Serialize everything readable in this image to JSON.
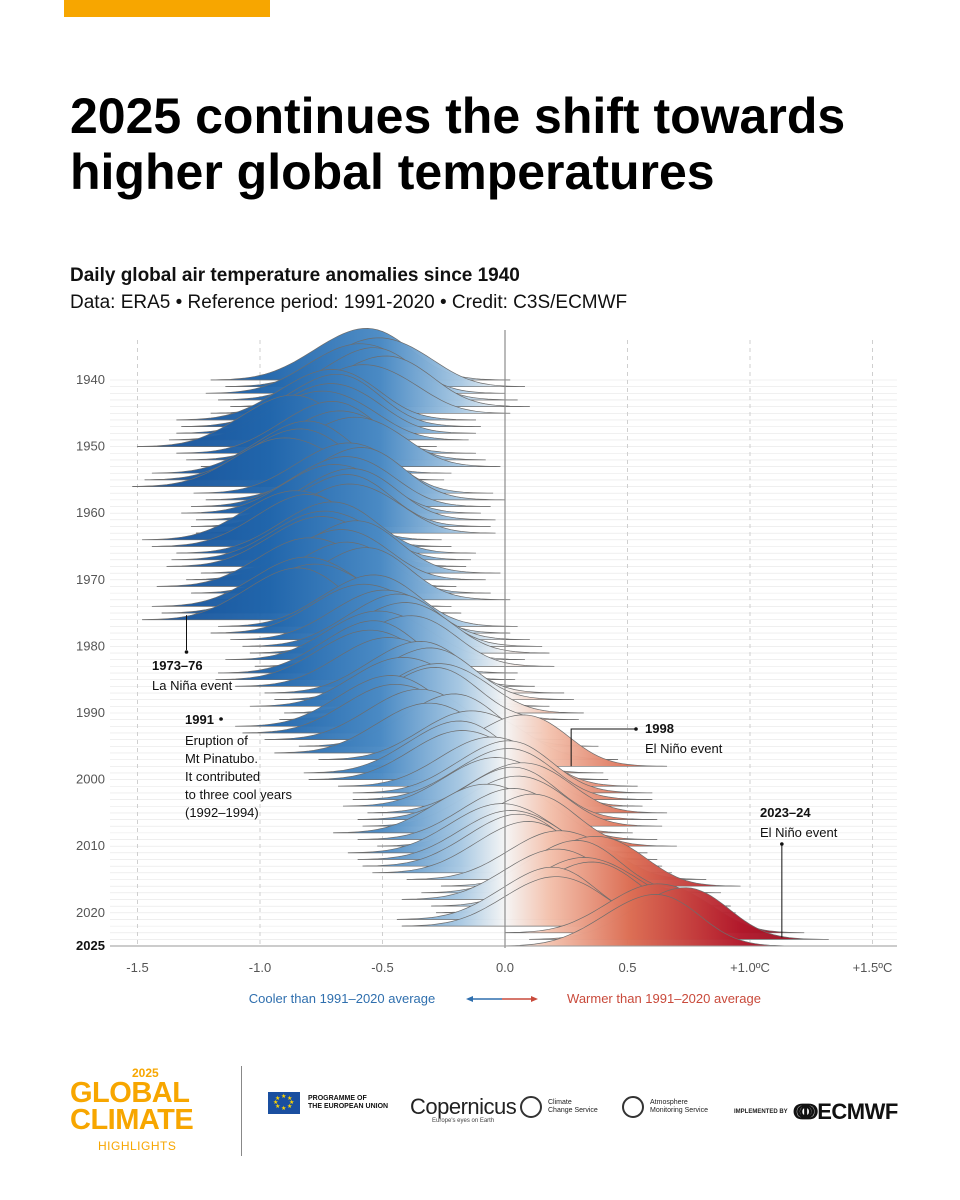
{
  "page": {
    "title": "2025 continues the shift towards higher global temperatures",
    "subtitle": "Daily global air temperature anomalies since 1940",
    "credit": "Data: ERA5 • Reference period: 1991-2020 • Credit: C3S/ECMWF"
  },
  "chart_data": {
    "type": "ridgeline",
    "title": "Daily global air temperature anomalies since 1940",
    "xlabel": "",
    "ylabel": "",
    "xlim": [
      -1.6,
      1.6
    ],
    "x_ticks": [
      "-1.5",
      "-1.0",
      "-0.5",
      "0.0",
      "0.5",
      "+1.0ºC",
      "+1.5ºC"
    ],
    "x_tick_values": [
      -1.5,
      -1.0,
      -0.5,
      0.0,
      0.5,
      1.0,
      1.5
    ],
    "y_ticks": [
      "1940",
      "1950",
      "1960",
      "1970",
      "1980",
      "1990",
      "2000",
      "2010",
      "2020",
      "2025"
    ],
    "color_scale": {
      "cool": "#1f5fa8",
      "neutral": "#f2f2f2",
      "warm": "#a3121f"
    },
    "series": [
      {
        "year": 1940,
        "mean": -0.58
      },
      {
        "year": 1941,
        "mean": -0.52
      },
      {
        "year": 1942,
        "mean": -0.6
      },
      {
        "year": 1943,
        "mean": -0.55
      },
      {
        "year": 1944,
        "mean": -0.5
      },
      {
        "year": 1945,
        "mean": -0.58
      },
      {
        "year": 1946,
        "mean": -0.72
      },
      {
        "year": 1947,
        "mean": -0.7
      },
      {
        "year": 1948,
        "mean": -0.72
      },
      {
        "year": 1949,
        "mean": -0.75
      },
      {
        "year": 1950,
        "mean": -0.88
      },
      {
        "year": 1951,
        "mean": -0.72
      },
      {
        "year": 1952,
        "mean": -0.68
      },
      {
        "year": 1953,
        "mean": -0.62
      },
      {
        "year": 1954,
        "mean": -0.82
      },
      {
        "year": 1955,
        "mean": -0.85
      },
      {
        "year": 1956,
        "mean": -0.9
      },
      {
        "year": 1957,
        "mean": -0.65
      },
      {
        "year": 1958,
        "mean": -0.6
      },
      {
        "year": 1959,
        "mean": -0.66
      },
      {
        "year": 1960,
        "mean": -0.7
      },
      {
        "year": 1961,
        "mean": -0.64
      },
      {
        "year": 1962,
        "mean": -0.66
      },
      {
        "year": 1963,
        "mean": -0.64
      },
      {
        "year": 1964,
        "mean": -0.86
      },
      {
        "year": 1965,
        "mean": -0.82
      },
      {
        "year": 1966,
        "mean": -0.72
      },
      {
        "year": 1967,
        "mean": -0.74
      },
      {
        "year": 1968,
        "mean": -0.76
      },
      {
        "year": 1969,
        "mean": -0.62
      },
      {
        "year": 1970,
        "mean": -0.68
      },
      {
        "year": 1971,
        "mean": -0.8
      },
      {
        "year": 1972,
        "mean": -0.66
      },
      {
        "year": 1973,
        "mean": -0.58
      },
      {
        "year": 1974,
        "mean": -0.82
      },
      {
        "year": 1975,
        "mean": -0.78
      },
      {
        "year": 1976,
        "mean": -0.86
      },
      {
        "year": 1977,
        "mean": -0.55
      },
      {
        "year": 1978,
        "mean": -0.58
      },
      {
        "year": 1979,
        "mean": -0.5
      },
      {
        "year": 1980,
        "mean": -0.45
      },
      {
        "year": 1981,
        "mean": -0.42
      },
      {
        "year": 1982,
        "mean": -0.52
      },
      {
        "year": 1983,
        "mean": -0.4
      },
      {
        "year": 1984,
        "mean": -0.55
      },
      {
        "year": 1985,
        "mean": -0.56
      },
      {
        "year": 1986,
        "mean": -0.48
      },
      {
        "year": 1987,
        "mean": -0.36
      },
      {
        "year": 1988,
        "mean": -0.32
      },
      {
        "year": 1989,
        "mean": -0.42
      },
      {
        "year": 1990,
        "mean": -0.28
      },
      {
        "year": 1991,
        "mean": -0.3
      },
      {
        "year": 1992,
        "mean": -0.48
      },
      {
        "year": 1993,
        "mean": -0.45
      },
      {
        "year": 1994,
        "mean": -0.36
      },
      {
        "year": 1995,
        "mean": -0.22
      },
      {
        "year": 1996,
        "mean": -0.32
      },
      {
        "year": 1997,
        "mean": -0.14
      },
      {
        "year": 1998,
        "mean": 0.06
      },
      {
        "year": 1999,
        "mean": -0.2
      },
      {
        "year": 2000,
        "mean": -0.18
      },
      {
        "year": 2001,
        "mean": -0.06
      },
      {
        "year": 2002,
        "mean": 0.0
      },
      {
        "year": 2003,
        "mean": 0.0
      },
      {
        "year": 2004,
        "mean": -0.04
      },
      {
        "year": 2005,
        "mean": 0.06
      },
      {
        "year": 2006,
        "mean": 0.02
      },
      {
        "year": 2007,
        "mean": 0.04
      },
      {
        "year": 2008,
        "mean": -0.08
      },
      {
        "year": 2009,
        "mean": 0.02
      },
      {
        "year": 2010,
        "mean": 0.1
      },
      {
        "year": 2011,
        "mean": -0.02
      },
      {
        "year": 2012,
        "mean": 0.02
      },
      {
        "year": 2013,
        "mean": 0.04
      },
      {
        "year": 2014,
        "mean": 0.08
      },
      {
        "year": 2015,
        "mean": 0.22
      },
      {
        "year": 2016,
        "mean": 0.36
      },
      {
        "year": 2017,
        "mean": 0.28
      },
      {
        "year": 2018,
        "mean": 0.2
      },
      {
        "year": 2019,
        "mean": 0.32
      },
      {
        "year": 2020,
        "mean": 0.34
      },
      {
        "year": 2021,
        "mean": 0.18
      },
      {
        "year": 2022,
        "mean": 0.2
      },
      {
        "year": 2023,
        "mean": 0.62
      },
      {
        "year": 2024,
        "mean": 0.72
      },
      {
        "year": 2025,
        "mean": 0.6
      }
    ],
    "annotations": [
      {
        "label": "1973–76",
        "text": [
          "La Niña event"
        ],
        "x": -1.3,
        "year": 1975
      },
      {
        "label": "1991",
        "text": [
          "Eruption of",
          "Mt Pinatubo.",
          "It contributed",
          "to three cool years",
          "(1992–1994)"
        ],
        "x": -1.07,
        "year": 1991
      },
      {
        "label": "1998",
        "text": [
          "El Niño event"
        ],
        "x": 0.27,
        "year": 1998
      },
      {
        "label": "2023–24",
        "text": [
          "El Niño event"
        ],
        "x": 1.13,
        "year": 2024
      }
    ],
    "legend": {
      "cool": "Cooler than 1991–2020 average",
      "warm": "Warmer than 1991–2020 average"
    }
  },
  "footer": {
    "brand_year": "2025",
    "brand_line1": "GLOBAL",
    "brand_line2": "CLIMATE",
    "brand_line3": "HIGHLIGHTS",
    "eu_label_1": "PROGRAMME OF",
    "eu_label_2": "THE EUROPEAN UNION",
    "copernicus": "opernicus",
    "copernicus_tag": "Europe's eyes on Earth",
    "c3s_1": "Climate",
    "c3s_2": "Change Service",
    "cams_1": "Atmosphere",
    "cams_2": "Monitoring Service",
    "implemented_by": "IMPLEMENTED BY",
    "ecmwf": "ECMWF"
  }
}
